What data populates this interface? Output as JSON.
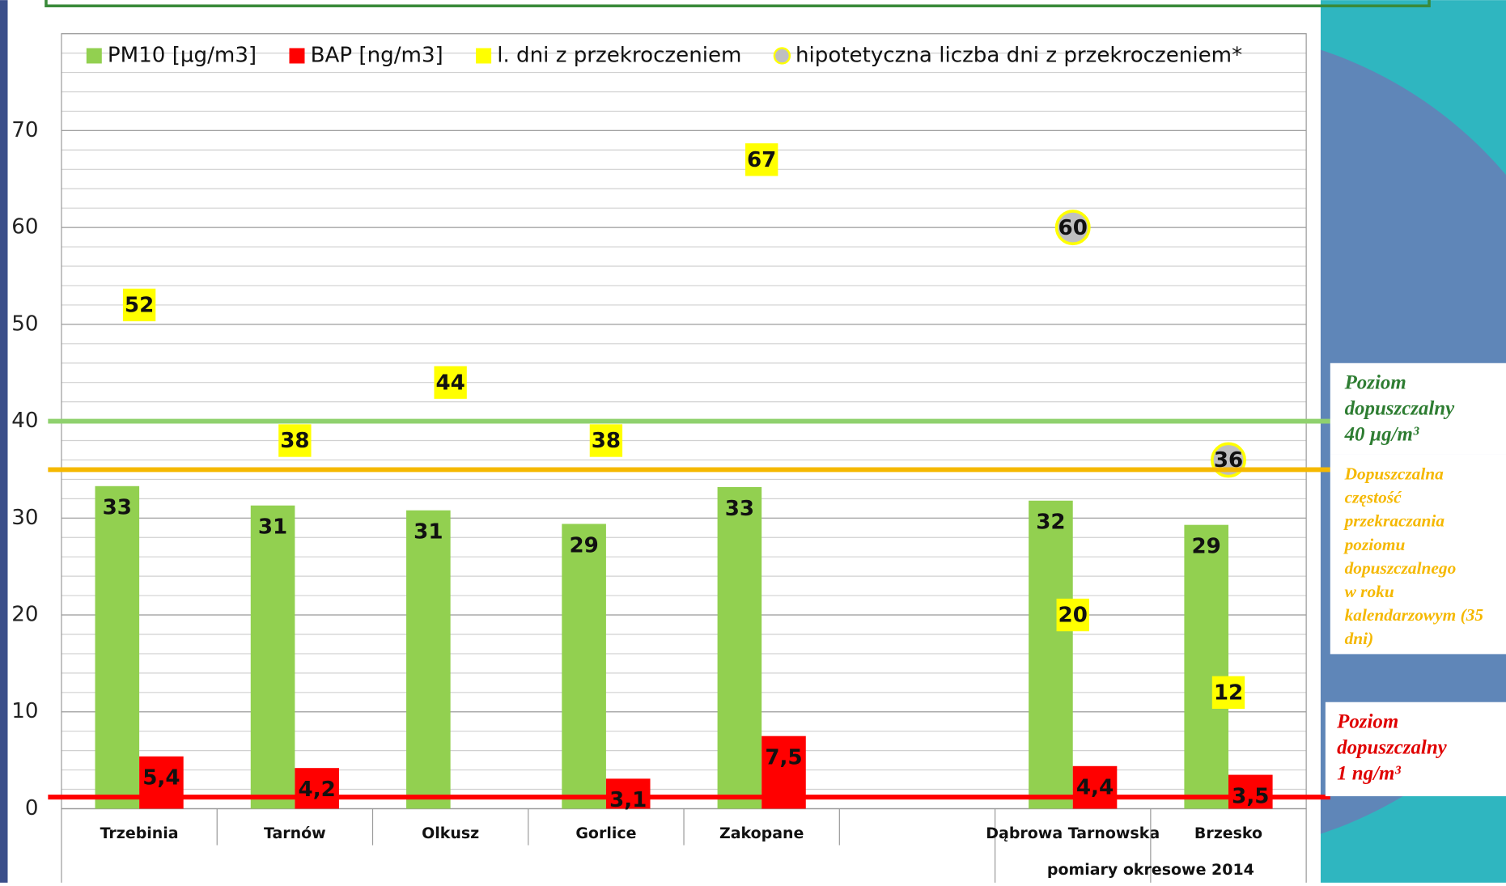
{
  "chart_data": {
    "type": "bar",
    "categories": [
      "Trzebinia",
      "Tarnów",
      "Olkusz",
      "Gorlice",
      "Zakopane",
      null,
      "Dąbrowa Tarnowska",
      "Brzesko"
    ],
    "series": [
      {
        "name": "PM10 [µg/m3]",
        "color": "#92d050",
        "values": [
          33.3,
          31.3,
          30.8,
          29.4,
          33.2,
          null,
          31.8,
          29.3
        ],
        "value_labels": [
          "33",
          "31",
          "31",
          "29",
          "33",
          null,
          "32",
          "29"
        ]
      },
      {
        "name": "BAP [ng/m3]",
        "color": "#ff0000",
        "values": [
          5.4,
          4.2,
          null,
          3.1,
          7.5,
          null,
          4.4,
          3.5
        ],
        "value_labels": [
          "5,4",
          "4,2",
          null,
          "3,1",
          "7,5",
          null,
          "4,4",
          "3,5"
        ]
      },
      {
        "name": "l. dni z przekroczeniem",
        "color": "#ffff00",
        "type": "label",
        "values": [
          52,
          38,
          44,
          38,
          67,
          null,
          20,
          12
        ]
      },
      {
        "name": "hipotetyczna liczba dni z przekroczeniem*",
        "color": "#bfbfbf",
        "type": "circle",
        "values": [
          null,
          null,
          null,
          null,
          null,
          null,
          60,
          36
        ]
      }
    ],
    "ylim": [
      0,
      80
    ],
    "yticks": [
      0,
      10,
      20,
      30,
      40,
      50,
      60,
      70
    ],
    "grid": true,
    "minor_grid_step": 2,
    "group_label": "pomiary okresowe 2014",
    "reference_lines": [
      {
        "value": 40,
        "color": "#8fd16e",
        "text": [
          "Poziom",
          "dopuszczalny",
          "40 µg/m³"
        ],
        "text_color": "#2e7d32"
      },
      {
        "value": 35,
        "color": "#f5b800",
        "text": [
          "Dopuszczalna",
          "częstość",
          "przekraczania",
          "poziomu",
          "dopuszczalnego",
          "w roku",
          "kalendarzowym (35",
          "dni)"
        ],
        "text_color": "#f5b800"
      },
      {
        "value": 1.2,
        "color": "#ff0000",
        "text": [
          "Poziom",
          "dopuszczalny",
          "1 ng/m³"
        ],
        "text_color": "#e00000"
      }
    ]
  }
}
